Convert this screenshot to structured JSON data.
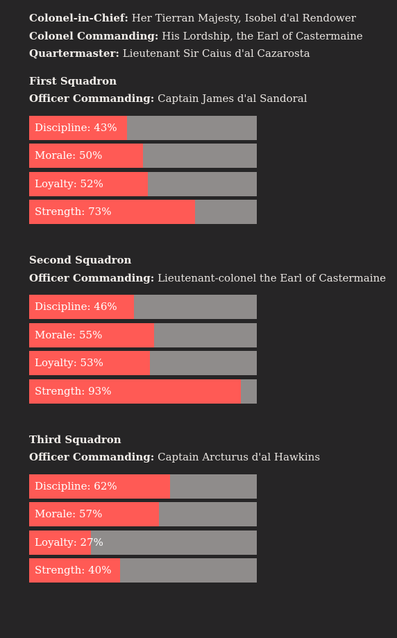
{
  "regiment": {
    "colonel_in_chief": {
      "label": "Colonel-in-Chief:",
      "value": "Her Tierran Majesty, Isobel d'al Rendower"
    },
    "colonel_commanding": {
      "label": "Colonel Commanding:",
      "value": "His Lordship, the Earl of Castermaine"
    },
    "quartermaster": {
      "label": "Quartermaster:",
      "value": "Lieutenant Sir Caius d'al Cazarosta"
    }
  },
  "squadrons": [
    {
      "name": "First Squadron",
      "officer_label": "Officer Commanding:",
      "officer": "Captain James d'al Sandoral",
      "stats": [
        {
          "label": "Discipline: 43%",
          "value": 43
        },
        {
          "label": "Morale: 50%",
          "value": 50
        },
        {
          "label": "Loyalty: 52%",
          "value": 52
        },
        {
          "label": "Strength: 73%",
          "value": 73
        }
      ]
    },
    {
      "name": "Second Squadron",
      "officer_label": "Officer Commanding:",
      "officer": "Lieutenant-colonel the Earl of Castermaine",
      "stats": [
        {
          "label": "Discipline: 46%",
          "value": 46
        },
        {
          "label": "Morale: 55%",
          "value": 55
        },
        {
          "label": "Loyalty: 53%",
          "value": 53
        },
        {
          "label": "Strength: 93%",
          "value": 93
        }
      ]
    },
    {
      "name": "Third Squadron",
      "officer_label": "Officer Commanding:",
      "officer": "Captain Arcturus d'al Hawkins",
      "stats": [
        {
          "label": "Discipline: 62%",
          "value": 62
        },
        {
          "label": "Morale: 57%",
          "value": 57
        },
        {
          "label": "Loyalty: 27%",
          "value": 27
        },
        {
          "label": "Strength: 40%",
          "value": 40
        }
      ]
    }
  ],
  "colors": {
    "background": "#262526",
    "bar_fill": "#ff5a55",
    "bar_track": "#8f8c8b",
    "text": "#e8e4e0"
  }
}
